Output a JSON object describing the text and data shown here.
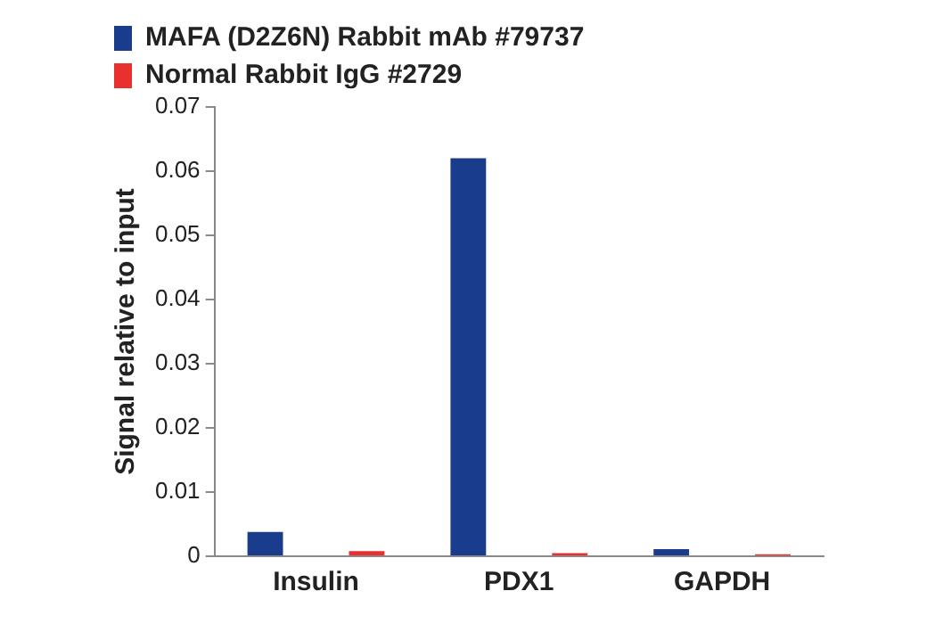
{
  "chart_data": {
    "type": "bar",
    "ylabel": "Signal relative to input",
    "categories": [
      "Insulin",
      "PDX1",
      "GAPDH"
    ],
    "series": [
      {
        "name": "MAFA (D2Z6N) Rabbit mAb #79737",
        "color": "#1a3c8c",
        "values": [
          0.0038,
          0.062,
          0.0011
        ]
      },
      {
        "name": "Normal Rabbit IgG #2729",
        "color": "#e8312f",
        "values": [
          0.0008,
          0.0005,
          0.0003
        ]
      }
    ],
    "ylim": [
      0,
      0.07
    ],
    "yticks": [
      0,
      0.01,
      0.02,
      0.03,
      0.04,
      0.05,
      0.06,
      0.07
    ],
    "grid": false,
    "legend": "top"
  }
}
